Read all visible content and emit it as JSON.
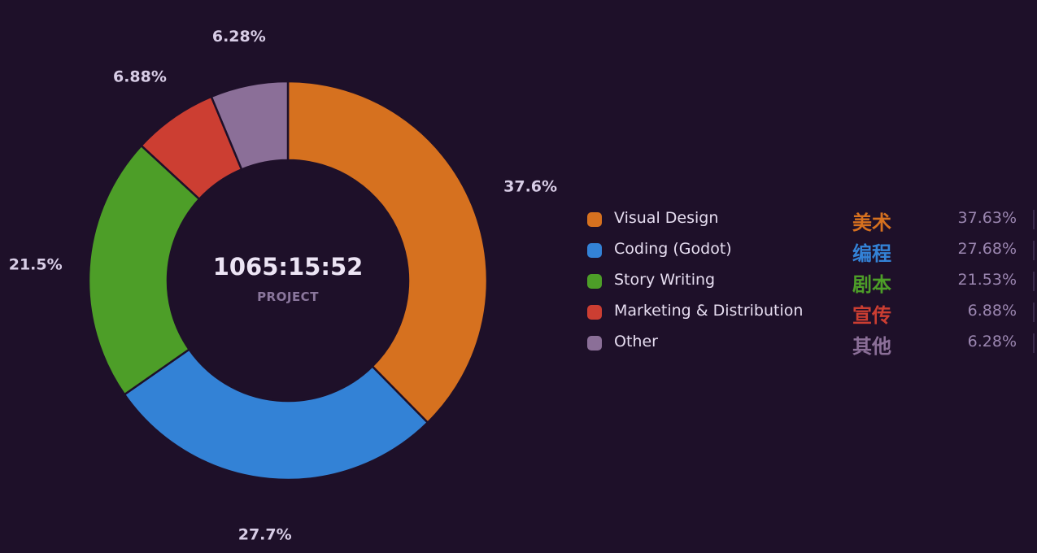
{
  "chart_data": {
    "type": "pie",
    "donut": true,
    "center": {
      "total": "1065:15:52",
      "label": "PROJECT"
    },
    "slices": [
      {
        "name": "Visual Design",
        "name_cn": "美术",
        "value": 37.63,
        "pct_label": "37.63%",
        "slice_label": "37.6%",
        "color": "#d6711f"
      },
      {
        "name": "Coding (Godot)",
        "name_cn": "编程",
        "value": 27.68,
        "pct_label": "27.68%",
        "slice_label": "27.7%",
        "color": "#3382d6"
      },
      {
        "name": "Story Writing",
        "name_cn": "剧本",
        "value": 21.53,
        "pct_label": "21.53%",
        "slice_label": "21.5%",
        "color": "#4d9e28"
      },
      {
        "name": "Marketing & Distribution",
        "name_cn": "宣传",
        "value": 6.88,
        "pct_label": "6.88%",
        "slice_label": "6.88%",
        "color": "#cc3e32"
      },
      {
        "name": "Other",
        "name_cn": "其他",
        "value": 6.28,
        "pct_label": "6.28%",
        "slice_label": "6.28%",
        "color": "#8b6f98"
      }
    ],
    "legend_placement": "right"
  }
}
